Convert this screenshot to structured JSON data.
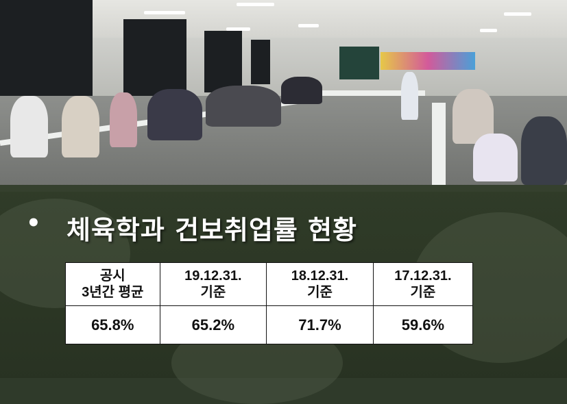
{
  "slide": {
    "bullet": "•",
    "title": "체육학과 건보취업률 현황"
  },
  "table": {
    "headers": [
      {
        "line1": "공시",
        "line2": "3년간 평균"
      },
      {
        "line1": "19.12.31.",
        "line2": "기준"
      },
      {
        "line1": "18.12.31.",
        "line2": "기준"
      },
      {
        "line1": "17.12.31.",
        "line2": "기준"
      }
    ],
    "values": [
      "65.8%",
      "65.2%",
      "71.7%",
      "59.6%"
    ]
  },
  "colors": {
    "overlay": "#303c28",
    "title_text": "#ffffff",
    "table_bg": "#ffffff",
    "table_border": "#111111"
  }
}
